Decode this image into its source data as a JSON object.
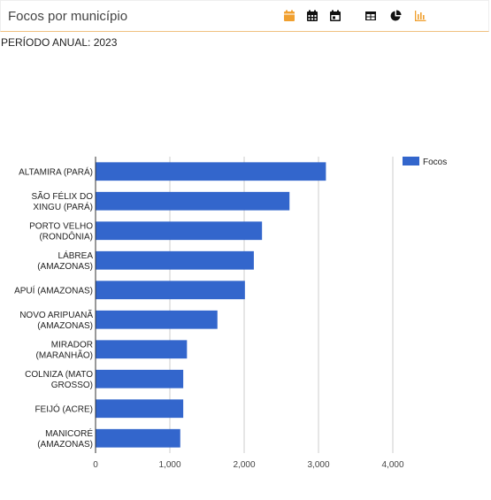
{
  "header": {
    "title": "Focos por município"
  },
  "toolbar": {
    "icons": [
      {
        "name": "calendar-month-icon",
        "color": "#f0a030"
      },
      {
        "name": "calendar-grid-icon",
        "color": "#111111"
      },
      {
        "name": "calendar-day-icon",
        "color": "#111111"
      },
      {
        "name": "table-icon",
        "color": "#111111"
      },
      {
        "name": "pie-chart-icon",
        "color": "#111111"
      },
      {
        "name": "bar-chart-icon",
        "color": "#f0a030"
      }
    ]
  },
  "period": {
    "label": "PERÍODO ANUAL: 2023"
  },
  "chart_data": {
    "type": "bar",
    "orientation": "horizontal",
    "categories": [
      [
        "ALTAMIRA (PARÁ)"
      ],
      [
        "SÃO FÉLIX DO",
        "XINGU (PARÁ)"
      ],
      [
        "PORTO VELHO",
        "(RONDÔNIA)"
      ],
      [
        "LÁBREA",
        "(AMAZONAS)"
      ],
      [
        "APUÍ (AMAZONAS)"
      ],
      [
        "NOVO ARIPUANÃ",
        "(AMAZONAS)"
      ],
      [
        "MIRADOR",
        "(MARANHÃO)"
      ],
      [
        "COLNIZA (MATO",
        "GROSSO)"
      ],
      [
        "FEIJÓ (ACRE)"
      ],
      [
        "MANICORÉ",
        "(AMAZONAS)"
      ]
    ],
    "series": [
      {
        "name": "Focos",
        "values": [
          3100,
          2610,
          2240,
          2130,
          2010,
          1640,
          1230,
          1180,
          1180,
          1140
        ],
        "color": "#3366cc"
      }
    ],
    "xlim": [
      0,
      4000
    ],
    "xticks": [
      0,
      1000,
      2000,
      3000,
      4000
    ],
    "xtick_labels": [
      "0",
      "1,000",
      "2,000",
      "3,000",
      "4,000"
    ],
    "grid": true,
    "legend_position": "top-right"
  }
}
